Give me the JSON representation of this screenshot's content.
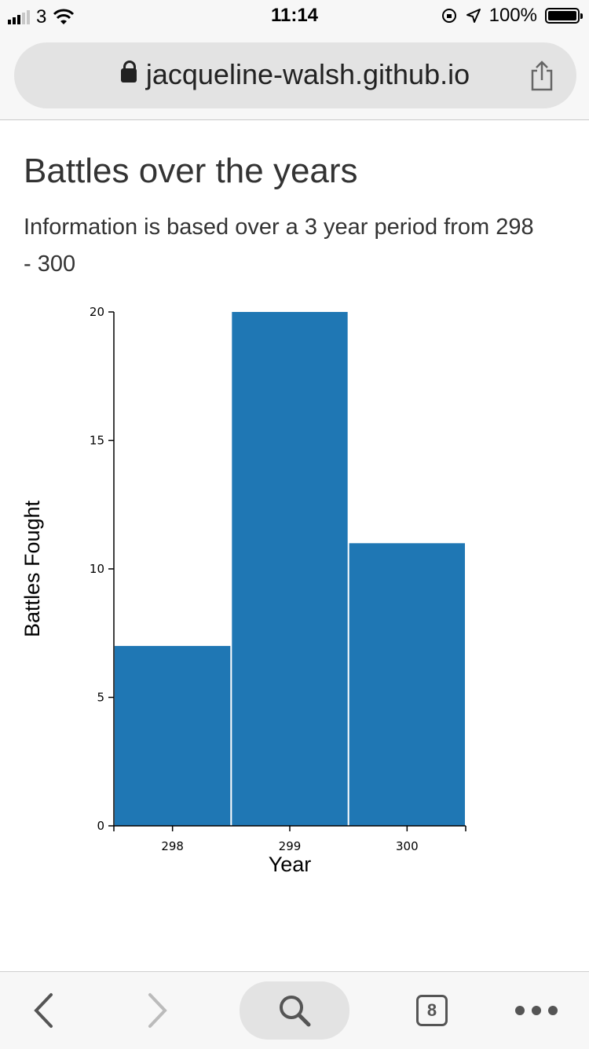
{
  "status_bar": {
    "carrier": "3",
    "time": "11:14",
    "battery": "100%"
  },
  "browser": {
    "url": "jacqueline-walsh.github.io",
    "tab_count": "8"
  },
  "page": {
    "title": "Battles over the years",
    "subtitle": "Information is based over a 3 year period from 298 - 300"
  },
  "chart_data": {
    "type": "bar",
    "categories": [
      "298",
      "299",
      "300"
    ],
    "values": [
      7,
      20,
      11
    ],
    "xlabel": "Year",
    "ylabel": "Battles Fought",
    "ylim": [
      0,
      20
    ],
    "yticks": [
      "0",
      "5",
      "10",
      "15",
      "20"
    ],
    "bar_color": "#1f77b4",
    "grid": false
  }
}
